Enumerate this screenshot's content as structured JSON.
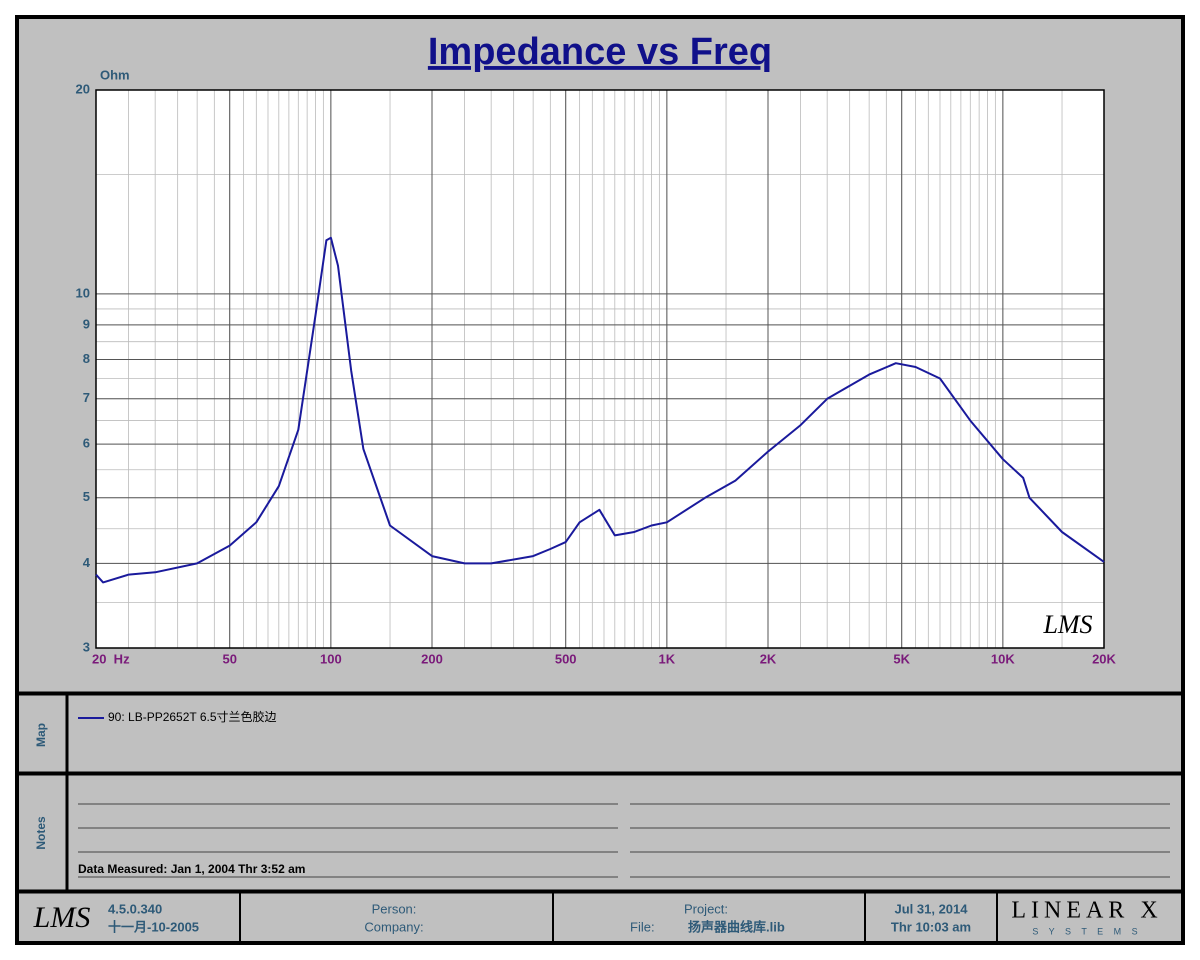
{
  "chart_data": {
    "type": "line",
    "title": "Impedance vs Freq",
    "y_label": "Ohm",
    "x_scale": "log",
    "y_scale": "log",
    "grid": true,
    "minor_grid": true,
    "xlim": [
      20,
      20000
    ],
    "ylim": [
      3,
      20
    ],
    "xticks": [
      {
        "value": 20,
        "label": "20  Hz"
      },
      50,
      100,
      200,
      500,
      {
        "value": 1000,
        "label": "1K"
      },
      {
        "value": 2000,
        "label": "2K"
      },
      {
        "value": 5000,
        "label": "5K"
      },
      {
        "value": 10000,
        "label": "10K"
      },
      {
        "value": 20000,
        "label": "20K"
      }
    ],
    "yticks": [
      3,
      4,
      5,
      6,
      7,
      8,
      9,
      10,
      20
    ],
    "x": [
      20,
      21,
      25,
      30,
      40,
      50,
      60,
      70,
      80,
      90,
      97,
      100,
      105,
      115,
      125,
      150,
      200,
      250,
      300,
      400,
      450,
      500,
      550,
      630,
      700,
      800,
      900,
      1000,
      1300,
      1600,
      2000,
      2500,
      3000,
      4000,
      4800,
      5500,
      6500,
      8000,
      10000,
      11500,
      12000,
      15000,
      20000
    ],
    "series": [
      {
        "name": "90: LB-PP2652T 6.5寸兰色胶边",
        "color": "#1a1a9c",
        "values": [
          3.85,
          3.75,
          3.85,
          3.88,
          4.0,
          4.25,
          4.6,
          5.2,
          6.3,
          9.3,
          12.0,
          12.1,
          11.0,
          7.7,
          5.9,
          4.55,
          4.1,
          4.0,
          4.0,
          4.1,
          4.2,
          4.3,
          4.6,
          4.8,
          4.4,
          4.45,
          4.55,
          4.6,
          5.0,
          5.3,
          5.85,
          6.4,
          7.0,
          7.6,
          7.9,
          7.8,
          7.5,
          6.5,
          5.7,
          5.35,
          5.0,
          4.45,
          4.02
        ]
      }
    ],
    "watermark": "LMS"
  },
  "map_panel": {
    "label": "Map"
  },
  "notes_panel": {
    "label": "Notes",
    "measured": "Data Measured: Jan  1, 2004  Thr  3:52 am"
  },
  "footer": {
    "logo": "LMS",
    "version": "4.5.0.340",
    "build_date": "十一月-10-2005",
    "person": "Person:",
    "company": "Company:",
    "project": "Project:",
    "file_label": "File:",
    "file": "扬声器曲线库.lib",
    "date": "Jul 31, 2014",
    "time": "Thr 10:03 am",
    "brand": "LINEAR X",
    "brand_sub": "S Y S T E M S"
  }
}
